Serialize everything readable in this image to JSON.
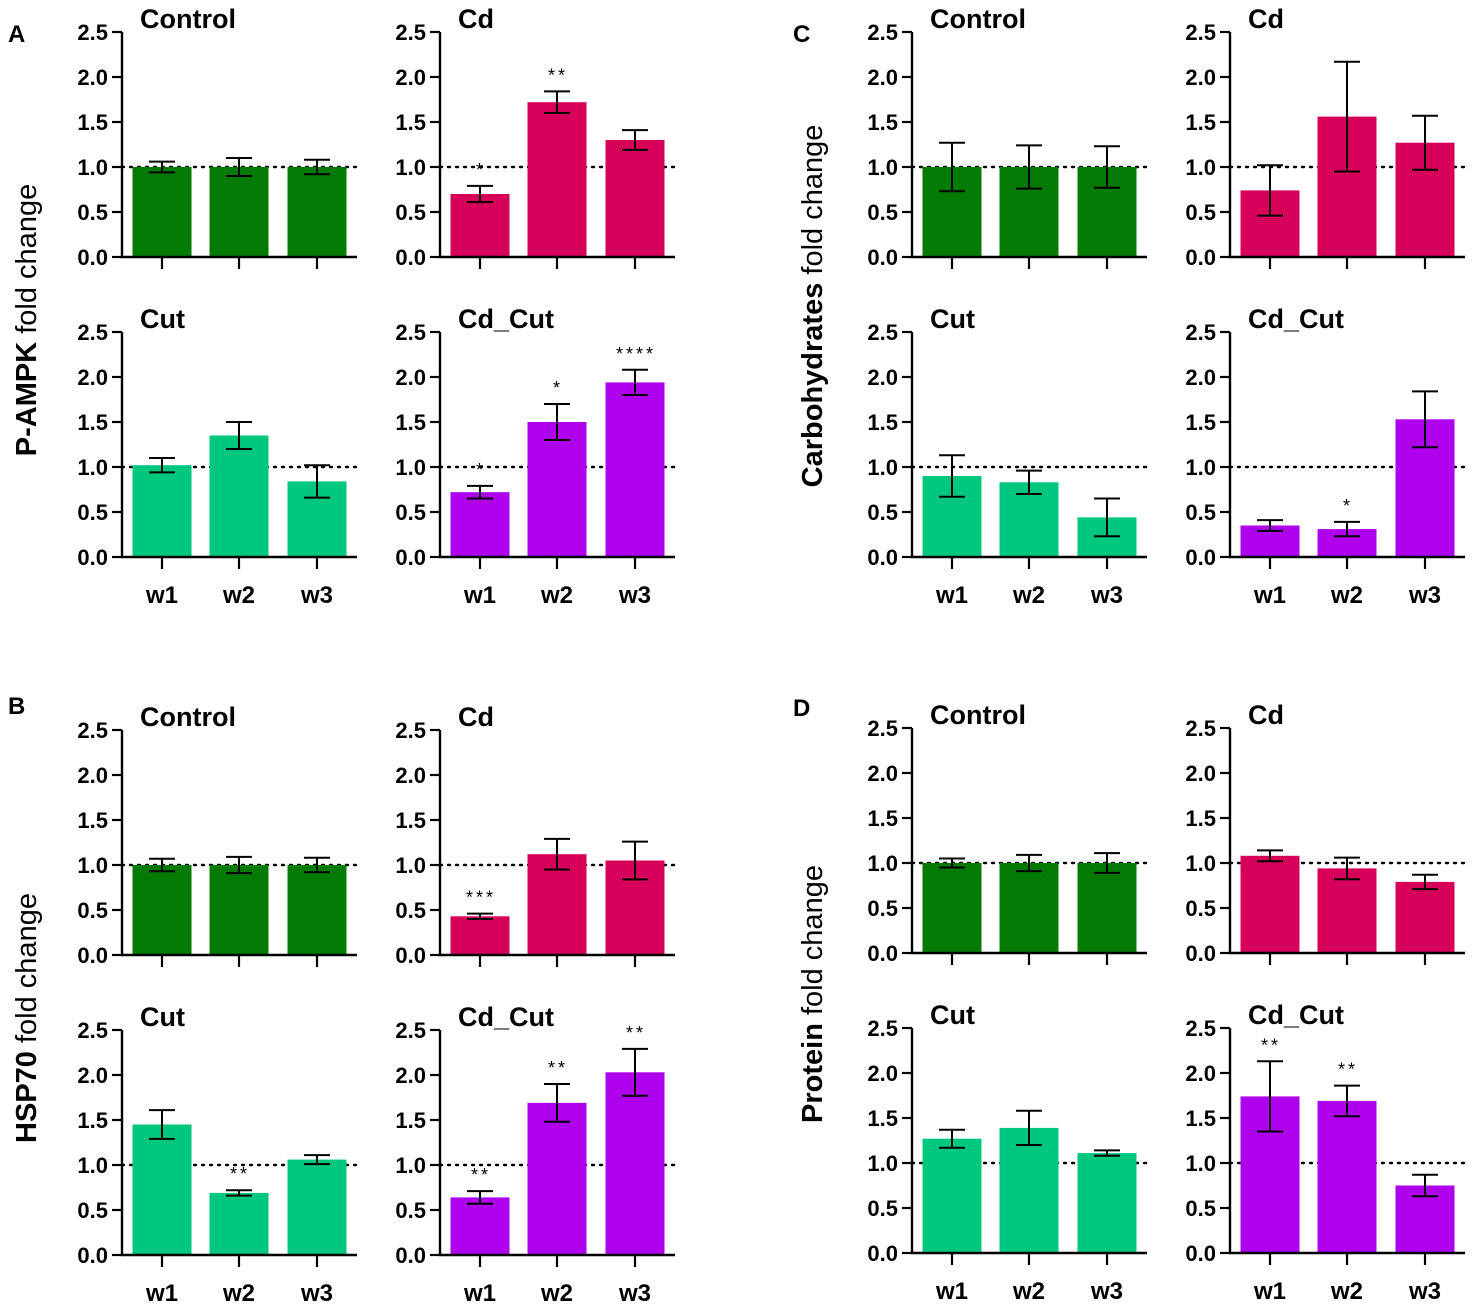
{
  "colors": {
    "Control": "#037a03",
    "Cd": "#d6005a",
    "Cut": "#00c77e",
    "Cd_Cut": "#af00ee",
    "axis": "#000000"
  },
  "y_ticks": [
    "0.0",
    "0.5",
    "1.0",
    "1.5",
    "2.0",
    "2.5"
  ],
  "groups": [
    {
      "letter": "A",
      "ylabel_bold": "P-AMPK",
      "ylabel_normal": " fold change"
    },
    {
      "letter": "B",
      "ylabel_bold": "HSP70",
      "ylabel_normal": " fold change"
    },
    {
      "letter": "C",
      "ylabel_bold": "Carbohydrates",
      "ylabel_normal": " fold change"
    },
    {
      "letter": "D",
      "ylabel_bold": "Protein",
      "ylabel_normal": " fold change"
    }
  ],
  "chart_data": [
    {
      "type": "bar",
      "group": "A",
      "title": "Control",
      "categories": [
        "w1",
        "w2",
        "w3"
      ],
      "values": [
        1.0,
        1.0,
        1.0
      ],
      "errors": [
        0.06,
        0.1,
        0.08
      ],
      "significance": [
        "",
        "",
        ""
      ],
      "ylim": [
        0,
        2.5
      ],
      "reference_line": 1.0,
      "show_xlabels": false
    },
    {
      "type": "bar",
      "group": "A",
      "title": "Cd",
      "categories": [
        "w1",
        "w2",
        "w3"
      ],
      "values": [
        0.7,
        1.72,
        1.3
      ],
      "errors": [
        0.09,
        0.12,
        0.11
      ],
      "significance": [
        "*",
        "**",
        ""
      ],
      "ylim": [
        0,
        2.5
      ],
      "reference_line": 1.0,
      "show_xlabels": false
    },
    {
      "type": "bar",
      "group": "A",
      "title": "Cut",
      "categories": [
        "w1",
        "w2",
        "w3"
      ],
      "values": [
        1.02,
        1.35,
        0.84
      ],
      "errors": [
        0.08,
        0.15,
        0.18
      ],
      "significance": [
        "",
        "",
        ""
      ],
      "ylim": [
        0,
        2.5
      ],
      "reference_line": 1.0,
      "show_xlabels": true
    },
    {
      "type": "bar",
      "group": "A",
      "title": "Cd_Cut",
      "categories": [
        "w1",
        "w2",
        "w3"
      ],
      "values": [
        0.72,
        1.5,
        1.94
      ],
      "errors": [
        0.07,
        0.2,
        0.14
      ],
      "significance": [
        "*",
        "*",
        "****"
      ],
      "ylim": [
        0,
        2.5
      ],
      "reference_line": 1.0,
      "show_xlabels": true
    },
    {
      "type": "bar",
      "group": "B",
      "title": "Control",
      "categories": [
        "w1",
        "w2",
        "w3"
      ],
      "values": [
        1.0,
        1.0,
        1.0
      ],
      "errors": [
        0.07,
        0.09,
        0.08
      ],
      "significance": [
        "",
        "",
        ""
      ],
      "ylim": [
        0,
        2.5
      ],
      "reference_line": 1.0,
      "show_xlabels": false
    },
    {
      "type": "bar",
      "group": "B",
      "title": "Cd",
      "categories": [
        "w1",
        "w2",
        "w3"
      ],
      "values": [
        0.43,
        1.12,
        1.05
      ],
      "errors": [
        0.03,
        0.17,
        0.21
      ],
      "significance": [
        "***",
        "",
        ""
      ],
      "ylim": [
        0,
        2.5
      ],
      "reference_line": 1.0,
      "show_xlabels": false
    },
    {
      "type": "bar",
      "group": "B",
      "title": "Cut",
      "categories": [
        "w1",
        "w2",
        "w3"
      ],
      "values": [
        1.45,
        0.69,
        1.06
      ],
      "errors": [
        0.16,
        0.03,
        0.05
      ],
      "significance": [
        "",
        "**",
        ""
      ],
      "ylim": [
        0,
        2.5
      ],
      "reference_line": 1.0,
      "show_xlabels": true
    },
    {
      "type": "bar",
      "group": "B",
      "title": "Cd_Cut",
      "categories": [
        "w1",
        "w2",
        "w3"
      ],
      "values": [
        0.64,
        1.69,
        2.03
      ],
      "errors": [
        0.07,
        0.21,
        0.26
      ],
      "significance": [
        "**",
        "**",
        "**"
      ],
      "ylim": [
        0,
        2.5
      ],
      "reference_line": 1.0,
      "show_xlabels": true
    },
    {
      "type": "bar",
      "group": "C",
      "title": "Control",
      "categories": [
        "w1",
        "w2",
        "w3"
      ],
      "values": [
        1.0,
        1.0,
        1.0
      ],
      "errors": [
        0.27,
        0.24,
        0.23
      ],
      "significance": [
        "",
        "",
        ""
      ],
      "ylim": [
        0,
        2.5
      ],
      "reference_line": 1.0,
      "show_xlabels": false
    },
    {
      "type": "bar",
      "group": "C",
      "title": "Cd",
      "categories": [
        "w1",
        "w2",
        "w3"
      ],
      "values": [
        0.74,
        1.56,
        1.27
      ],
      "errors": [
        0.28,
        0.61,
        0.3
      ],
      "significance": [
        "",
        "",
        ""
      ],
      "ylim": [
        0,
        2.5
      ],
      "reference_line": 1.0,
      "show_xlabels": false
    },
    {
      "type": "bar",
      "group": "C",
      "title": "Cut",
      "categories": [
        "w1",
        "w2",
        "w3"
      ],
      "values": [
        0.9,
        0.83,
        0.44
      ],
      "errors": [
        0.23,
        0.13,
        0.21
      ],
      "significance": [
        "",
        "",
        ""
      ],
      "ylim": [
        0,
        2.5
      ],
      "reference_line": 1.0,
      "show_xlabels": true
    },
    {
      "type": "bar",
      "group": "C",
      "title": "Cd_Cut",
      "categories": [
        "w1",
        "w2",
        "w3"
      ],
      "values": [
        0.35,
        0.31,
        1.53
      ],
      "errors": [
        0.06,
        0.08,
        0.31
      ],
      "significance": [
        "",
        "*",
        ""
      ],
      "ylim": [
        0,
        2.5
      ],
      "reference_line": 1.0,
      "show_xlabels": true
    },
    {
      "type": "bar",
      "group": "D",
      "title": "Control",
      "categories": [
        "w1",
        "w2",
        "w3"
      ],
      "values": [
        1.0,
        1.0,
        1.0
      ],
      "errors": [
        0.05,
        0.09,
        0.11
      ],
      "significance": [
        "",
        "",
        ""
      ],
      "ylim": [
        0,
        2.5
      ],
      "reference_line": 1.0,
      "show_xlabels": false
    },
    {
      "type": "bar",
      "group": "D",
      "title": "Cd",
      "categories": [
        "w1",
        "w2",
        "w3"
      ],
      "values": [
        1.08,
        0.94,
        0.79
      ],
      "errors": [
        0.06,
        0.12,
        0.08
      ],
      "significance": [
        "",
        "",
        ""
      ],
      "ylim": [
        0,
        2.5
      ],
      "reference_line": 1.0,
      "show_xlabels": false
    },
    {
      "type": "bar",
      "group": "D",
      "title": "Cut",
      "categories": [
        "w1",
        "w2",
        "w3"
      ],
      "values": [
        1.27,
        1.39,
        1.11
      ],
      "errors": [
        0.1,
        0.19,
        0.03
      ],
      "significance": [
        "",
        "",
        ""
      ],
      "ylim": [
        0,
        2.5
      ],
      "reference_line": 1.0,
      "show_xlabels": true
    },
    {
      "type": "bar",
      "group": "D",
      "title": "Cd_Cut",
      "categories": [
        "w1",
        "w2",
        "w3"
      ],
      "values": [
        1.74,
        1.69,
        0.75
      ],
      "errors": [
        0.39,
        0.17,
        0.12
      ],
      "significance": [
        "**",
        "**",
        ""
      ],
      "ylim": [
        0,
        2.5
      ],
      "reference_line": 1.0,
      "show_xlabels": true
    }
  ]
}
